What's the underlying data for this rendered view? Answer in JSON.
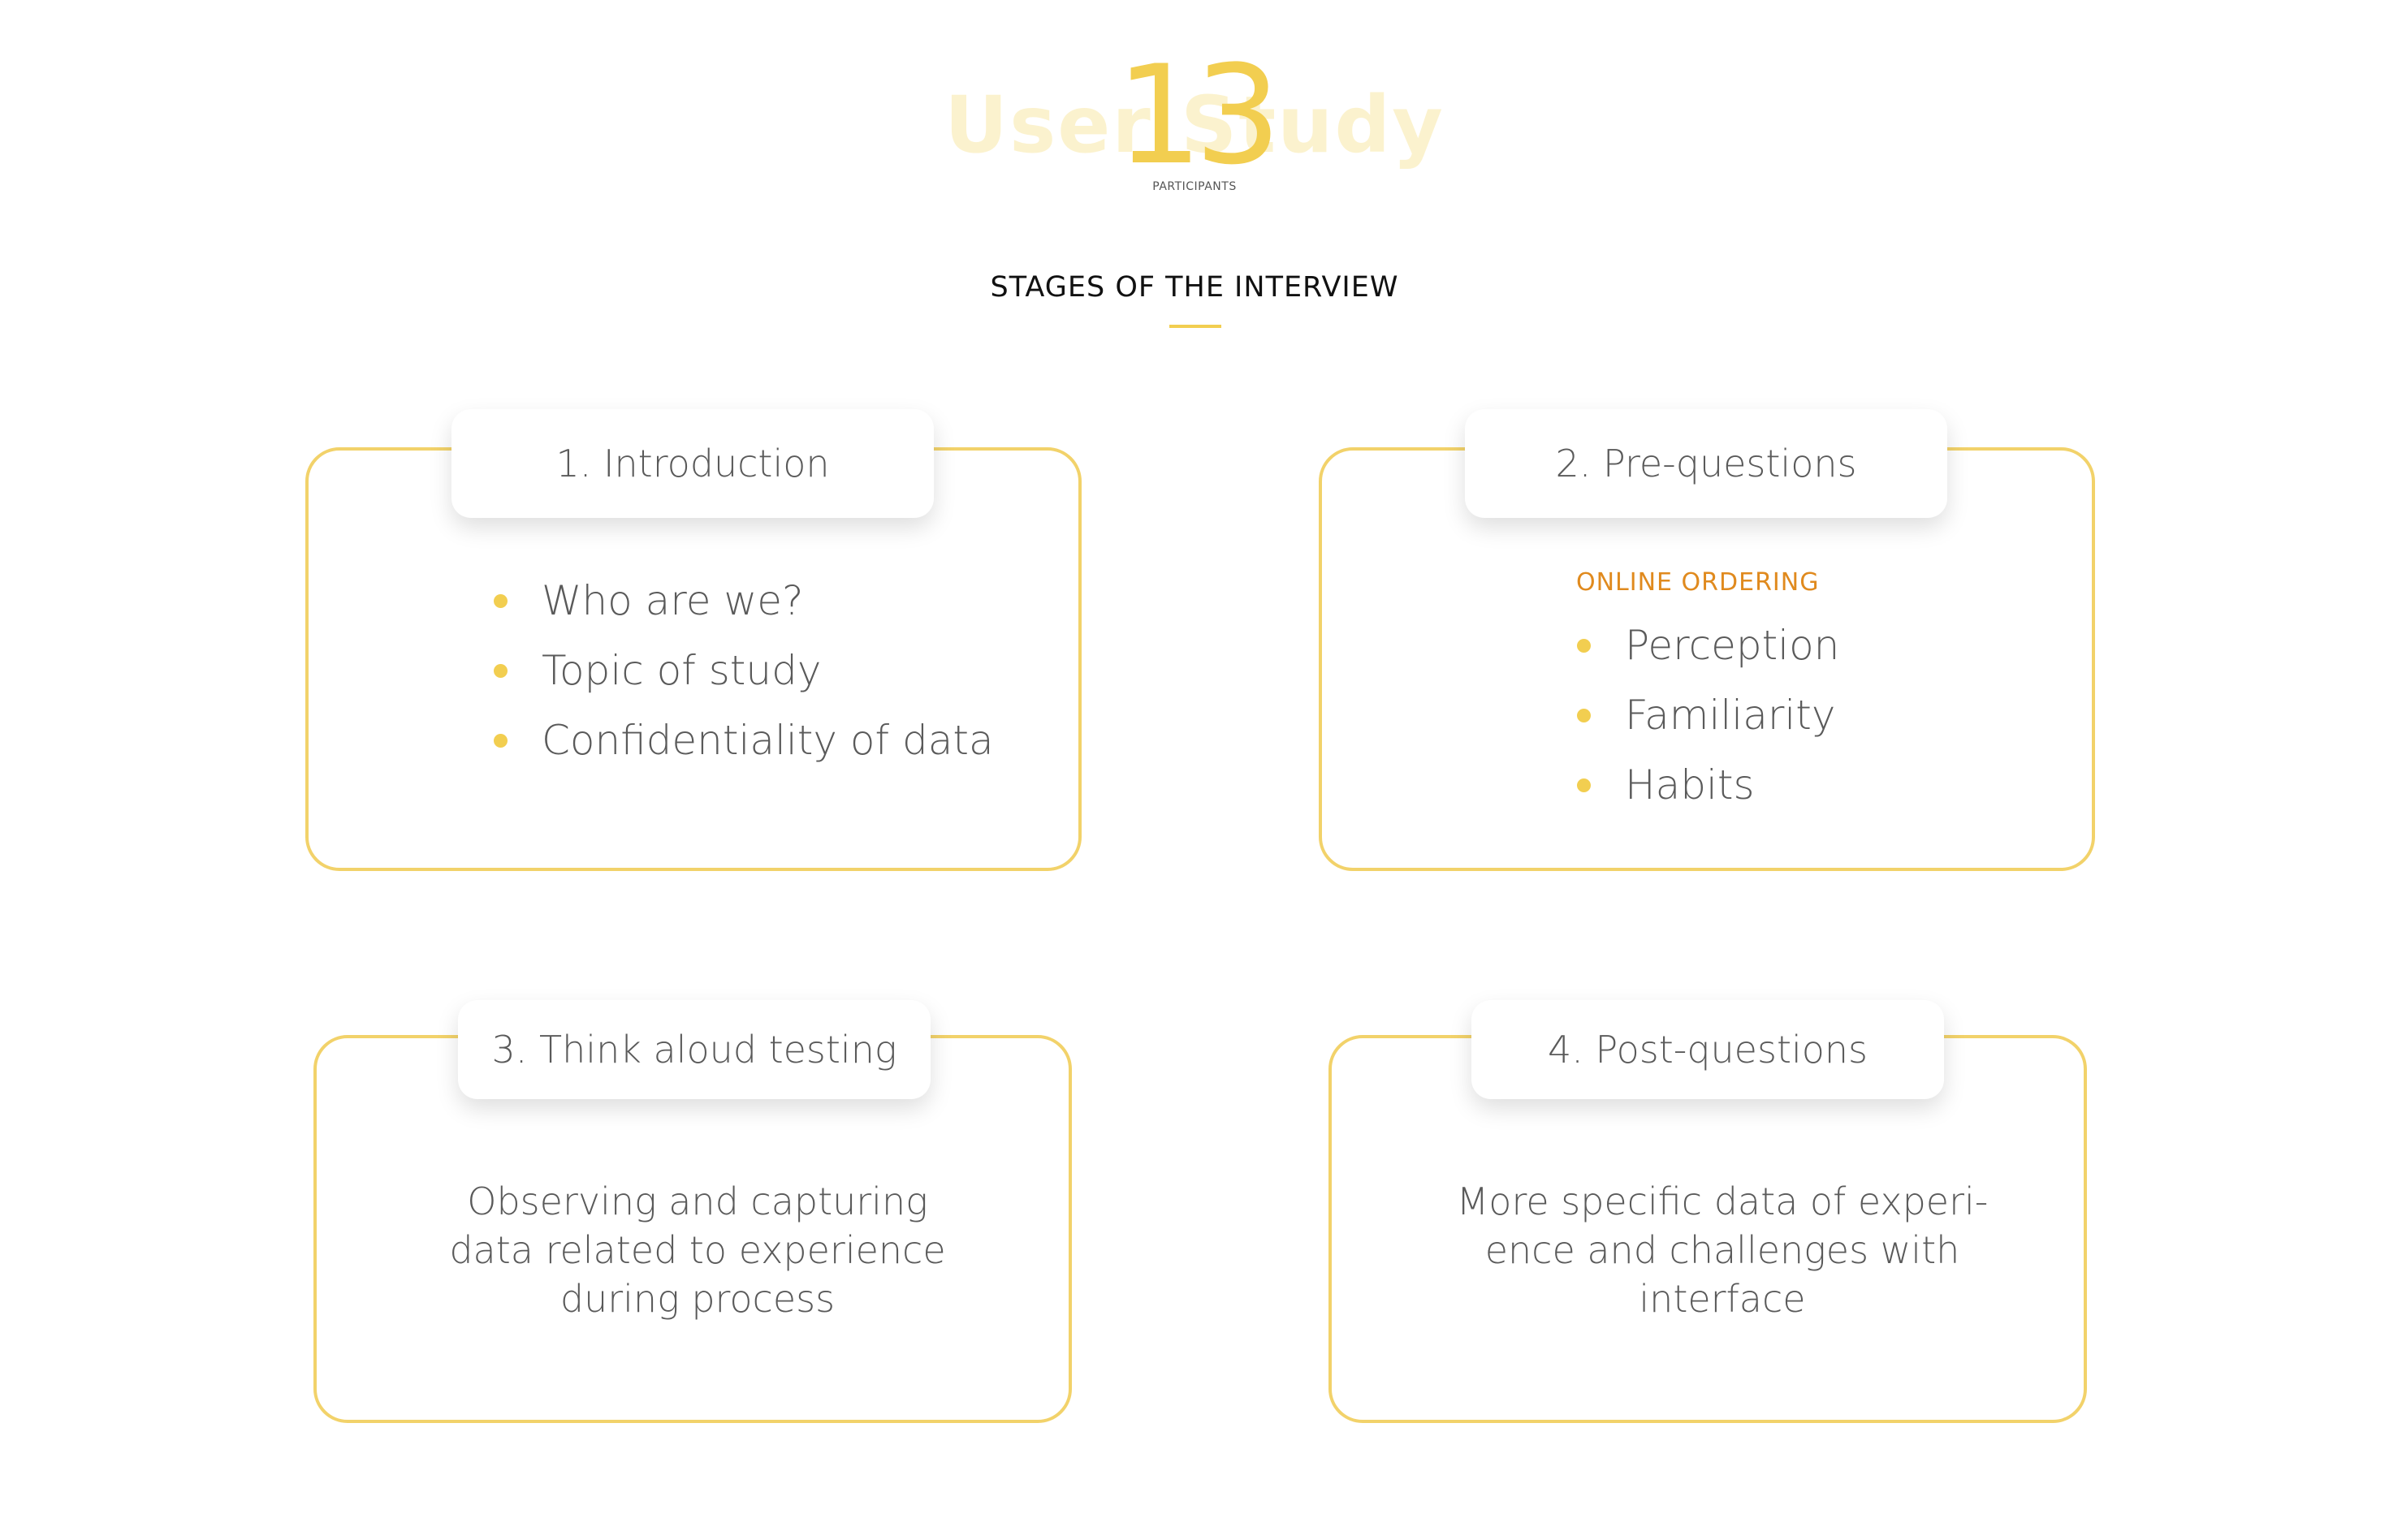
{
  "colors": {
    "accent": "#F2CE50",
    "border": "#F2D26A",
    "subheading": "#E08A1E",
    "text": "#5A5A5A",
    "title": "#111111"
  },
  "hero": {
    "background_title": "User Study",
    "number": "13",
    "caption": "PARTICIPANTS"
  },
  "section": {
    "title": "STAGES OF THE INTERVIEW"
  },
  "stages": [
    {
      "title": "1. Introduction",
      "items": [
        "Who are we?",
        "Topic of study",
        "Confidentiality of data"
      ]
    },
    {
      "title": "2. Pre-questions",
      "subheading": "ONLINE ORDERING",
      "items": [
        "Perception",
        "Familiarity",
        "Habits"
      ]
    },
    {
      "title": "3. Think aloud testing",
      "description_lines": [
        "Observing and capturing",
        "data related to experience",
        "during process"
      ]
    },
    {
      "title": "4. Post-questions",
      "description_lines": [
        "More specific data of experi-",
        "ence and challenges with",
        "interface"
      ]
    }
  ]
}
